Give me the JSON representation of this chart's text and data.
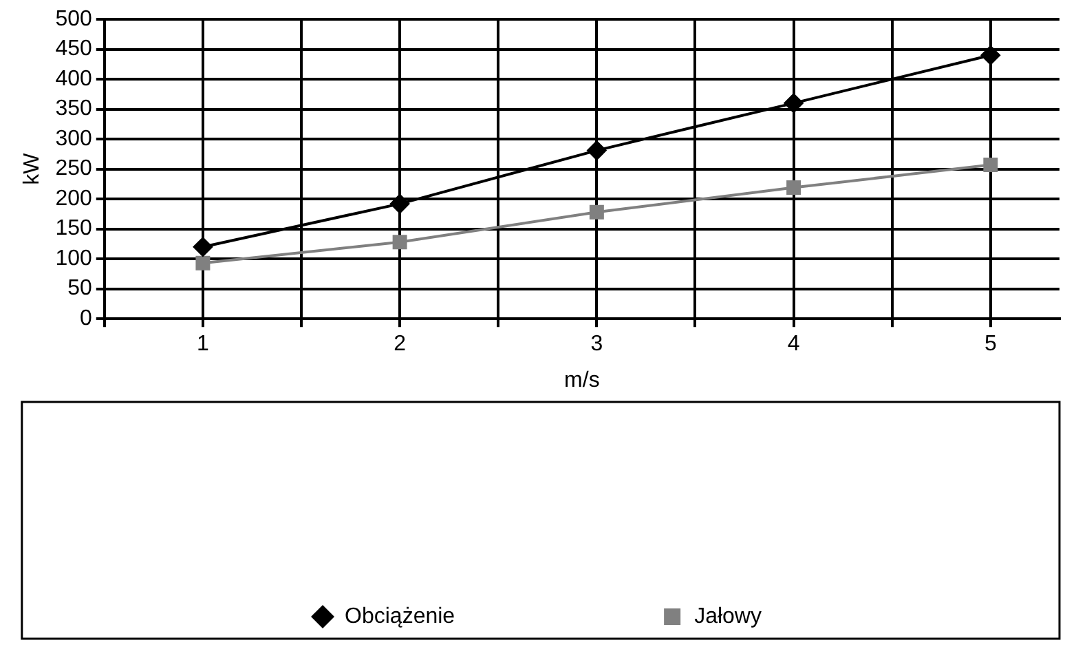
{
  "chart_data": {
    "type": "line",
    "xlabel": "m/s",
    "ylabel": "kW",
    "x": [
      1,
      2,
      3,
      4,
      5
    ],
    "xlim": [
      0.5,
      5.35
    ],
    "xticks": [
      {
        "value": 0.5,
        "label": null
      },
      1,
      {
        "value": 1.5,
        "label": null
      },
      2,
      {
        "value": 2.5,
        "label": null
      },
      3,
      {
        "value": 3.5,
        "label": null
      },
      4,
      {
        "value": 4.5,
        "label": null
      },
      5
    ],
    "ylim": [
      0,
      500
    ],
    "yticks": [
      0,
      50,
      100,
      150,
      200,
      250,
      300,
      350,
      400,
      450,
      500
    ],
    "grid": true,
    "legend": "bottom",
    "series": [
      {
        "name": "Obciążenie",
        "color": "#000000",
        "marker": "diamond",
        "values": [
          120,
          192,
          281,
          360,
          440
        ]
      },
      {
        "name": "Jałowy",
        "color": "#808080",
        "marker": "square",
        "values": [
          93,
          128,
          178,
          219,
          257
        ]
      }
    ]
  }
}
